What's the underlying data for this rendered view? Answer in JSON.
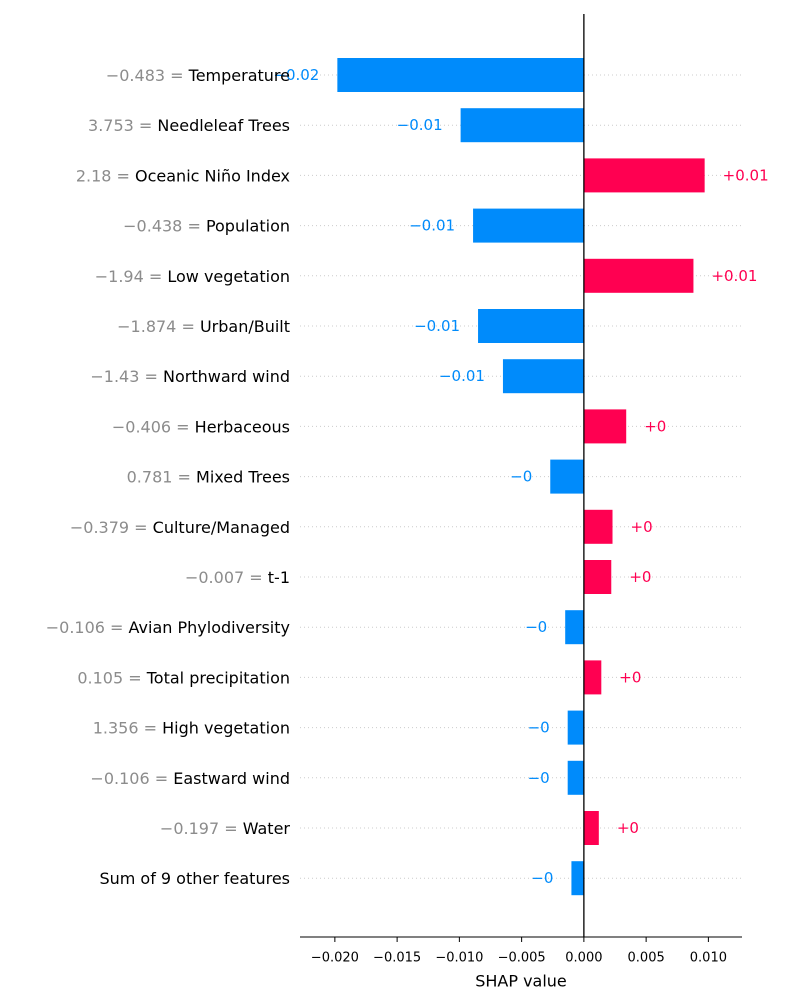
{
  "chart_data": {
    "type": "bar",
    "orientation": "horizontal",
    "xlabel": "SHAP value",
    "xlim": [
      -0.0228,
      0.0127
    ],
    "x_ticks": [
      {
        "value": -0.02,
        "label": "−0.020"
      },
      {
        "value": -0.015,
        "label": "−0.015"
      },
      {
        "value": -0.01,
        "label": "−0.010"
      },
      {
        "value": -0.005,
        "label": "−0.005"
      },
      {
        "value": 0.0,
        "label": "0.000"
      },
      {
        "value": 0.005,
        "label": "0.005"
      },
      {
        "value": 0.01,
        "label": "0.010"
      }
    ],
    "grid": "horizontal dotted row lines",
    "colors": {
      "positive": "#ff0051",
      "negative": "#008bfb",
      "feature_value": "#8c8c8c"
    },
    "features": [
      {
        "value_text": "−0.483 =",
        "name": "Temperature",
        "shap": -0.0198,
        "label": "−0.02"
      },
      {
        "value_text": "3.753 =",
        "name": "Needleleaf Trees",
        "shap": -0.0099,
        "label": "−0.01"
      },
      {
        "value_text": "2.18 =",
        "name": "Oceanic Niño Index",
        "shap": 0.0097,
        "label": "+0.01"
      },
      {
        "value_text": "−0.438 =",
        "name": "Population",
        "shap": -0.0089,
        "label": "−0.01"
      },
      {
        "value_text": "−1.94 =",
        "name": "Low vegetation",
        "shap": 0.0088,
        "label": "+0.01"
      },
      {
        "value_text": "−1.874 =",
        "name": "Urban/Built",
        "shap": -0.0085,
        "label": "−0.01"
      },
      {
        "value_text": "−1.43 =",
        "name": "Northward wind",
        "shap": -0.0065,
        "label": "−0.01"
      },
      {
        "value_text": "−0.406 =",
        "name": "Herbaceous",
        "shap": 0.0034,
        "label": "+0"
      },
      {
        "value_text": "0.781 =",
        "name": "Mixed Trees",
        "shap": -0.0027,
        "label": "−0"
      },
      {
        "value_text": "−0.379 =",
        "name": "Culture/Managed",
        "shap": 0.0023,
        "label": "+0"
      },
      {
        "value_text": "−0.007 =",
        "name": "t-1",
        "shap": 0.0022,
        "label": "+0"
      },
      {
        "value_text": "−0.106 =",
        "name": "Avian Phylodiversity",
        "shap": -0.0015,
        "label": "−0"
      },
      {
        "value_text": "0.105 =",
        "name": "Total precipitation",
        "shap": 0.0014,
        "label": "+0"
      },
      {
        "value_text": "1.356 =",
        "name": "High vegetation",
        "shap": -0.0013,
        "label": "−0"
      },
      {
        "value_text": "−0.106 =",
        "name": "Eastward wind",
        "shap": -0.0013,
        "label": "−0"
      },
      {
        "value_text": "−0.197 =",
        "name": "Water",
        "shap": 0.0012,
        "label": "+0"
      },
      {
        "value_text": "",
        "name": "Sum of 9 other features",
        "shap": -0.001,
        "label": "−0"
      }
    ]
  }
}
